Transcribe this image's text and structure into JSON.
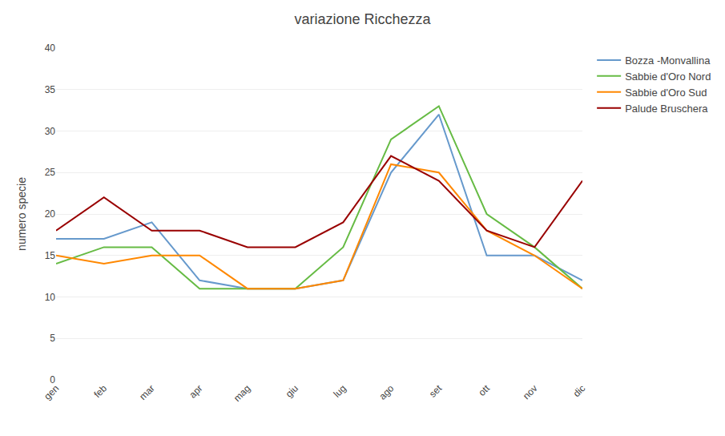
{
  "chart_data": {
    "type": "line",
    "title": "variazione Ricchezza",
    "ylabel": "numero specie",
    "categories": [
      "gen",
      "feb",
      "mar",
      "apr",
      "mag",
      "giu",
      "lug",
      "ago",
      "set",
      "ott",
      "nov",
      "dic"
    ],
    "series": [
      {
        "name": "Bozza -Monvallina",
        "color": "#6699CC",
        "values": [
          17,
          17,
          19,
          12,
          11,
          11,
          12,
          25,
          32,
          15,
          15,
          12
        ]
      },
      {
        "name": "Sabbie d'Oro Nord",
        "color": "#66BB44",
        "values": [
          14,
          16,
          16,
          11,
          11,
          11,
          16,
          29,
          33,
          20,
          16,
          11
        ]
      },
      {
        "name": "Sabbie d'Oro Sud",
        "color": "#FF8800",
        "values": [
          15,
          14,
          15,
          15,
          11,
          11,
          12,
          26,
          25,
          18,
          15,
          11
        ]
      },
      {
        "name": "Palude Bruschera",
        "color": "#990000",
        "values": [
          18,
          22,
          18,
          18,
          16,
          16,
          19,
          27,
          24,
          18,
          16,
          24
        ]
      }
    ],
    "ylim": [
      0,
      40
    ],
    "yticks": [
      0,
      5,
      10,
      15,
      20,
      25,
      30,
      35,
      40
    ],
    "grid": true,
    "legend": "right"
  }
}
